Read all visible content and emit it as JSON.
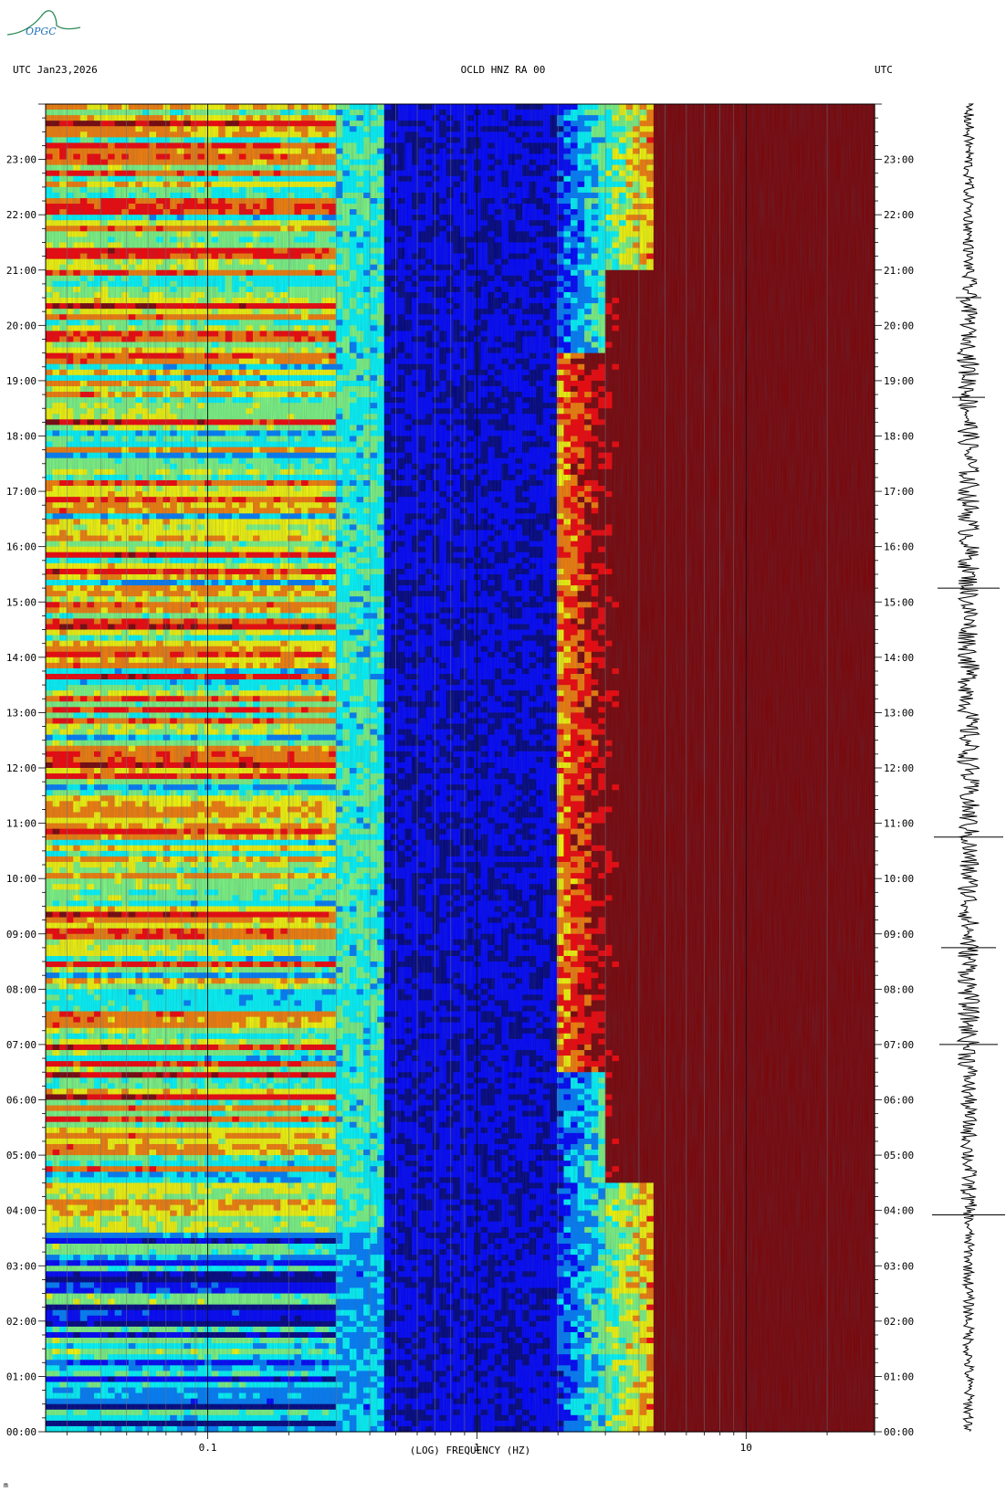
{
  "header": {
    "left": "UTC  Jan23,2026",
    "center": "OCLD HNZ RA 00",
    "right": "UTC"
  },
  "logo": {
    "text": "OPGC",
    "colors": [
      "#2e8b57",
      "#1e6fb8"
    ]
  },
  "chart_data": {
    "type": "heatmap",
    "title": "OCLD HNZ RA 00",
    "date": "Jan23,2026",
    "xlabel": "(LOG) FREQUENCY (HZ)",
    "x_scale": "log",
    "xlim": [
      0.025,
      30
    ],
    "x_ticks": [
      {
        "value": 0.1,
        "label": "0.1"
      },
      {
        "value": 1,
        "label": "1"
      },
      {
        "value": 10,
        "label": "10"
      }
    ],
    "ylabel": "UTC",
    "ylim_hours": [
      0,
      24
    ],
    "y_ticks": [
      "00:00",
      "01:00",
      "02:00",
      "03:00",
      "04:00",
      "05:00",
      "06:00",
      "07:00",
      "08:00",
      "09:00",
      "10:00",
      "11:00",
      "12:00",
      "13:00",
      "14:00",
      "15:00",
      "16:00",
      "17:00",
      "18:00",
      "19:00",
      "20:00",
      "21:00",
      "22:00",
      "23:00"
    ],
    "colormap": [
      "#00007f",
      "#0000ff",
      "#0080ff",
      "#00ffff",
      "#80ff80",
      "#ffff00",
      "#ff8000",
      "#ff0000",
      "#7f0000"
    ],
    "description_regions": [
      {
        "freq_range_hz": [
          0.025,
          0.3
        ],
        "level": "high (yellow-red)"
      },
      {
        "freq_range_hz": [
          0.4,
          2
        ],
        "level": "low (blue)"
      },
      {
        "freq_range_hz": [
          2,
          8
        ],
        "level": "rising, strongest 07:00-19:00"
      },
      {
        "freq_range_hz": [
          8,
          30
        ],
        "level": "saturated (dark red)"
      }
    ],
    "seismogram": "waveform trace 00:00-24:00 with spikes near 03:55, 07:00, 08:45, 10:45, 15:15"
  },
  "footer": {
    "mark": "m"
  }
}
